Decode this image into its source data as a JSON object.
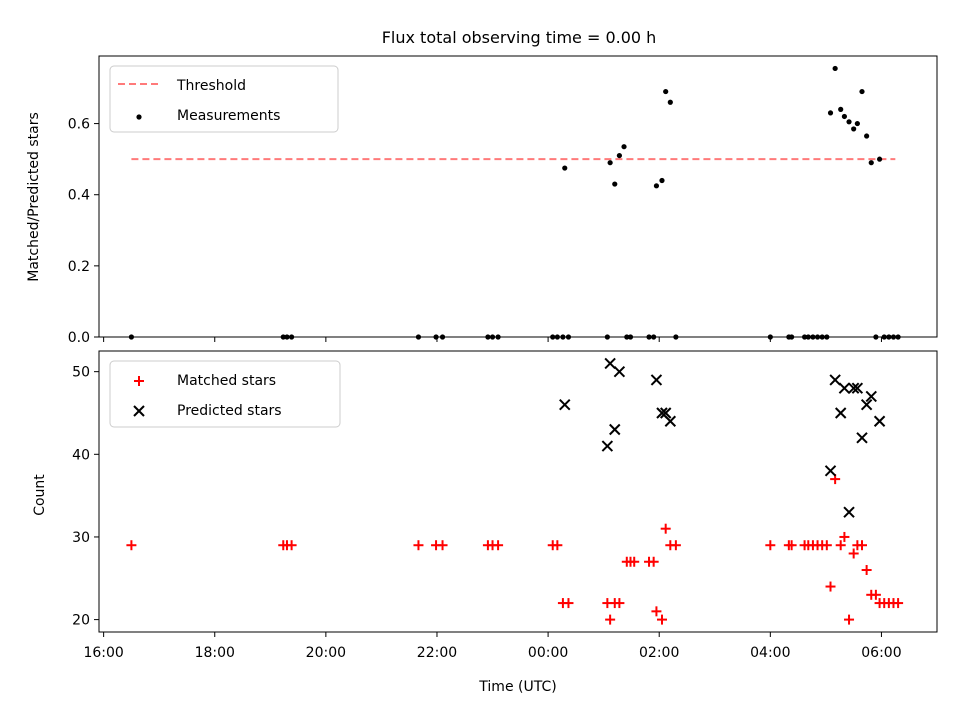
{
  "chart_data": [
    {
      "type": "scatter",
      "title": "Flux total observing time = 0.00 h",
      "xlabel": "",
      "ylabel": "Matched/Predicted stars",
      "xlim": [
        "15:55",
        "31:00"
      ],
      "ylim": [
        0,
        0.79
      ],
      "yticks": [
        0.0,
        0.2,
        0.4,
        0.6
      ],
      "ytick_labels": [
        "0.0",
        "0.2",
        "0.4",
        "0.6"
      ],
      "legend": {
        "placement": "upper-left",
        "entries": [
          "Threshold",
          "Measurements"
        ]
      },
      "threshold": {
        "name": "Threshold",
        "y": 0.5,
        "x_from": "16:30",
        "x_to": "30:15",
        "color": "#ff7a7a",
        "style": "dashed"
      },
      "series": [
        {
          "name": "Measurements",
          "marker": "dot",
          "color": "#000000",
          "points": [
            [
              "16:30",
              0
            ],
            [
              "19:14",
              0
            ],
            [
              "19:18",
              0
            ],
            [
              "19:23",
              0
            ],
            [
              "21:40",
              0
            ],
            [
              "21:59",
              0
            ],
            [
              "22:06",
              0
            ],
            [
              "22:55",
              0
            ],
            [
              "23:00",
              0
            ],
            [
              "23:06",
              0
            ],
            [
              "24:05",
              0
            ],
            [
              "24:10",
              0
            ],
            [
              "24:16",
              0
            ],
            [
              "24:18",
              0.475
            ],
            [
              "24:22",
              0
            ],
            [
              "25:04",
              0
            ],
            [
              "25:07",
              0.49
            ],
            [
              "25:12",
              0.43
            ],
            [
              "25:17",
              0.51
            ],
            [
              "25:22",
              0.535
            ],
            [
              "25:25",
              0
            ],
            [
              "25:29",
              0
            ],
            [
              "25:49",
              0
            ],
            [
              "25:54",
              0
            ],
            [
              "25:57",
              0.425
            ],
            [
              "26:03",
              0.44
            ],
            [
              "26:07",
              0.69
            ],
            [
              "26:12",
              0.66
            ],
            [
              "26:18",
              0
            ],
            [
              "28:00",
              0
            ],
            [
              "28:20",
              0
            ],
            [
              "28:23",
              0
            ],
            [
              "28:37",
              0
            ],
            [
              "28:41",
              0
            ],
            [
              "28:46",
              0
            ],
            [
              "28:51",
              0
            ],
            [
              "28:56",
              0
            ],
            [
              "29:01",
              0
            ],
            [
              "29:05",
              0.63
            ],
            [
              "29:10",
              0.755
            ],
            [
              "29:16",
              0.64
            ],
            [
              "29:20",
              0.62
            ],
            [
              "29:25",
              0.605
            ],
            [
              "29:30",
              0.585
            ],
            [
              "29:34",
              0.6
            ],
            [
              "29:39",
              0.69
            ],
            [
              "29:44",
              0.565
            ],
            [
              "29:49",
              0.49
            ],
            [
              "29:54",
              0
            ],
            [
              "29:58",
              0.5
            ],
            [
              "30:03",
              0
            ],
            [
              "30:08",
              0
            ],
            [
              "30:13",
              0
            ],
            [
              "30:18",
              0
            ]
          ]
        }
      ]
    },
    {
      "type": "scatter",
      "title": "",
      "xlabel": "Time (UTC)",
      "ylabel": "Count",
      "xlim": [
        "15:55",
        "31:00"
      ],
      "ylim": [
        18.5,
        52.5
      ],
      "xticks": [
        "16:00",
        "18:00",
        "20:00",
        "22:00",
        "00:00",
        "02:00",
        "04:00",
        "06:00"
      ],
      "yticks": [
        20,
        30,
        40,
        50
      ],
      "ytick_labels": [
        "20",
        "30",
        "40",
        "50"
      ],
      "legend": {
        "placement": "upper-left",
        "entries": [
          "Matched stars",
          "Predicted stars"
        ]
      },
      "series": [
        {
          "name": "Matched stars",
          "marker": "plus",
          "color": "#ff0000",
          "points": [
            [
              "16:30",
              29
            ],
            [
              "19:14",
              29
            ],
            [
              "19:18",
              29
            ],
            [
              "19:23",
              29
            ],
            [
              "21:40",
              29
            ],
            [
              "21:59",
              29
            ],
            [
              "22:06",
              29
            ],
            [
              "22:55",
              29
            ],
            [
              "23:00",
              29
            ],
            [
              "23:06",
              29
            ],
            [
              "24:05",
              29
            ],
            [
              "24:10",
              29
            ],
            [
              "24:16",
              22
            ],
            [
              "24:22",
              22
            ],
            [
              "25:04",
              22
            ],
            [
              "25:07",
              20
            ],
            [
              "25:12",
              22
            ],
            [
              "25:17",
              22
            ],
            [
              "25:25",
              27
            ],
            [
              "25:29",
              27
            ],
            [
              "25:33",
              27
            ],
            [
              "25:49",
              27
            ],
            [
              "25:54",
              27
            ],
            [
              "25:57",
              21
            ],
            [
              "26:03",
              20
            ],
            [
              "26:07",
              31
            ],
            [
              "26:12",
              29
            ],
            [
              "26:18",
              29
            ],
            [
              "28:00",
              29
            ],
            [
              "28:20",
              29
            ],
            [
              "28:23",
              29
            ],
            [
              "28:37",
              29
            ],
            [
              "28:41",
              29
            ],
            [
              "28:46",
              29
            ],
            [
              "28:51",
              29
            ],
            [
              "28:56",
              29
            ],
            [
              "29:01",
              29
            ],
            [
              "29:05",
              24
            ],
            [
              "29:10",
              37
            ],
            [
              "29:16",
              29
            ],
            [
              "29:20",
              30
            ],
            [
              "29:25",
              20
            ],
            [
              "29:30",
              28
            ],
            [
              "29:34",
              29
            ],
            [
              "29:39",
              29
            ],
            [
              "29:44",
              26
            ],
            [
              "29:49",
              23
            ],
            [
              "29:54",
              23
            ],
            [
              "29:58",
              22
            ],
            [
              "30:03",
              22
            ],
            [
              "30:08",
              22
            ],
            [
              "30:13",
              22
            ],
            [
              "30:18",
              22
            ]
          ]
        },
        {
          "name": "Predicted stars",
          "marker": "x",
          "color": "#000000",
          "points": [
            [
              "24:18",
              46
            ],
            [
              "25:04",
              41
            ],
            [
              "25:07",
              51
            ],
            [
              "25:12",
              43
            ],
            [
              "25:17",
              50
            ],
            [
              "25:57",
              49
            ],
            [
              "26:03",
              45
            ],
            [
              "26:07",
              45
            ],
            [
              "26:12",
              44
            ],
            [
              "29:05",
              38
            ],
            [
              "29:10",
              49
            ],
            [
              "29:16",
              45
            ],
            [
              "29:20",
              48
            ],
            [
              "29:25",
              33
            ],
            [
              "29:30",
              48
            ],
            [
              "29:34",
              48
            ],
            [
              "29:39",
              42
            ],
            [
              "29:44",
              46
            ],
            [
              "29:49",
              47
            ],
            [
              "29:58",
              44
            ]
          ]
        }
      ]
    }
  ]
}
